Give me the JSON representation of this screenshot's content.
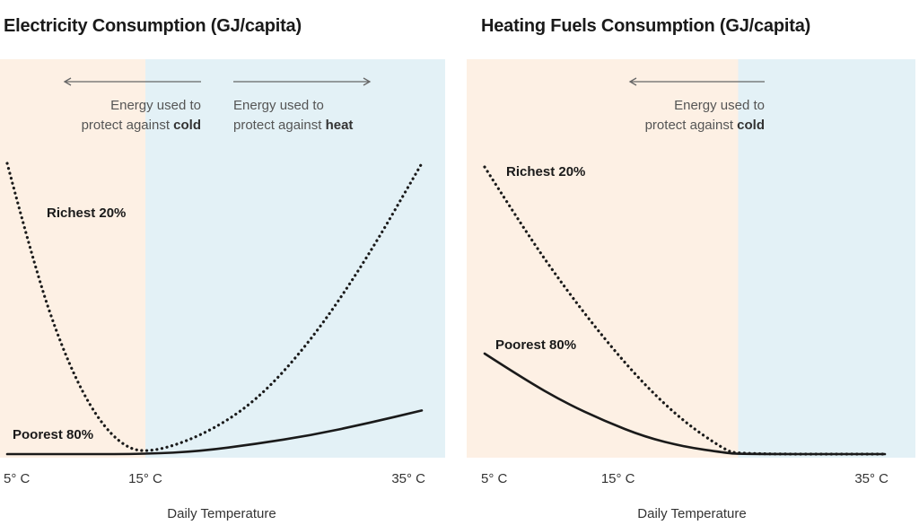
{
  "chart_data": [
    {
      "type": "line",
      "title": "Electricity Consumption (GJ/capita)",
      "xlabel": "Daily Temperature",
      "ylabel": "",
      "xlim": [
        5,
        35
      ],
      "ylim": [
        0,
        10
      ],
      "x_ticks": [
        "5° C",
        "15° C",
        "35° C"
      ],
      "grid": false,
      "regions": [
        {
          "from": 5,
          "to": 15,
          "color": "#fdf0e4"
        },
        {
          "from": 15,
          "to": 35,
          "color": "#e3f1f6"
        }
      ],
      "annotations": [
        {
          "lines": [
            "Energy used to",
            "protect against ",
            "cold"
          ],
          "arrow": "left"
        },
        {
          "lines": [
            "Energy used to",
            "protect against ",
            "heat"
          ],
          "arrow": "right"
        }
      ],
      "series": [
        {
          "name": "Richest 20%",
          "style": "dotted",
          "x": [
            5,
            7,
            9,
            11,
            13,
            15,
            19,
            23,
            27,
            31,
            35
          ],
          "y": [
            10,
            6.4,
            3.6,
            1.6,
            0.4,
            0,
            0.6,
            1.8,
            3.9,
            6.7,
            10
          ]
        },
        {
          "name": "Poorest 80%",
          "style": "solid",
          "x": [
            5,
            10,
            15,
            19,
            23,
            27,
            31,
            35
          ],
          "y": [
            0,
            0,
            0,
            0.1,
            0.35,
            0.65,
            1.05,
            1.5
          ]
        }
      ]
    },
    {
      "type": "line",
      "title": "Heating Fuels Consumption (GJ/capita)",
      "xlabel": "Daily Temperature",
      "ylabel": "",
      "xlim": [
        5,
        35
      ],
      "ylim": [
        0,
        10
      ],
      "x_ticks": [
        "5° C",
        "15° C",
        "35° C"
      ],
      "grid": false,
      "regions": [
        {
          "from": 5,
          "to": 24,
          "color": "#fdf0e4"
        },
        {
          "from": 24,
          "to": 35,
          "color": "#e3f1f6"
        }
      ],
      "annotations": [
        {
          "lines": [
            "Energy used to",
            "protect against ",
            "cold"
          ],
          "arrow": "left"
        }
      ],
      "series": [
        {
          "name": "Richest 20%",
          "style": "dotted",
          "x": [
            5,
            8,
            11,
            14,
            17,
            20,
            23,
            24,
            35
          ],
          "y": [
            10,
            7.8,
            5.8,
            4.0,
            2.4,
            1.1,
            0.15,
            0,
            0
          ]
        },
        {
          "name": "Poorest 80%",
          "style": "solid",
          "x": [
            5,
            8,
            11,
            14,
            17,
            20,
            23,
            24,
            35
          ],
          "y": [
            3.5,
            2.6,
            1.8,
            1.15,
            0.6,
            0.25,
            0.05,
            0,
            0
          ]
        }
      ]
    }
  ]
}
